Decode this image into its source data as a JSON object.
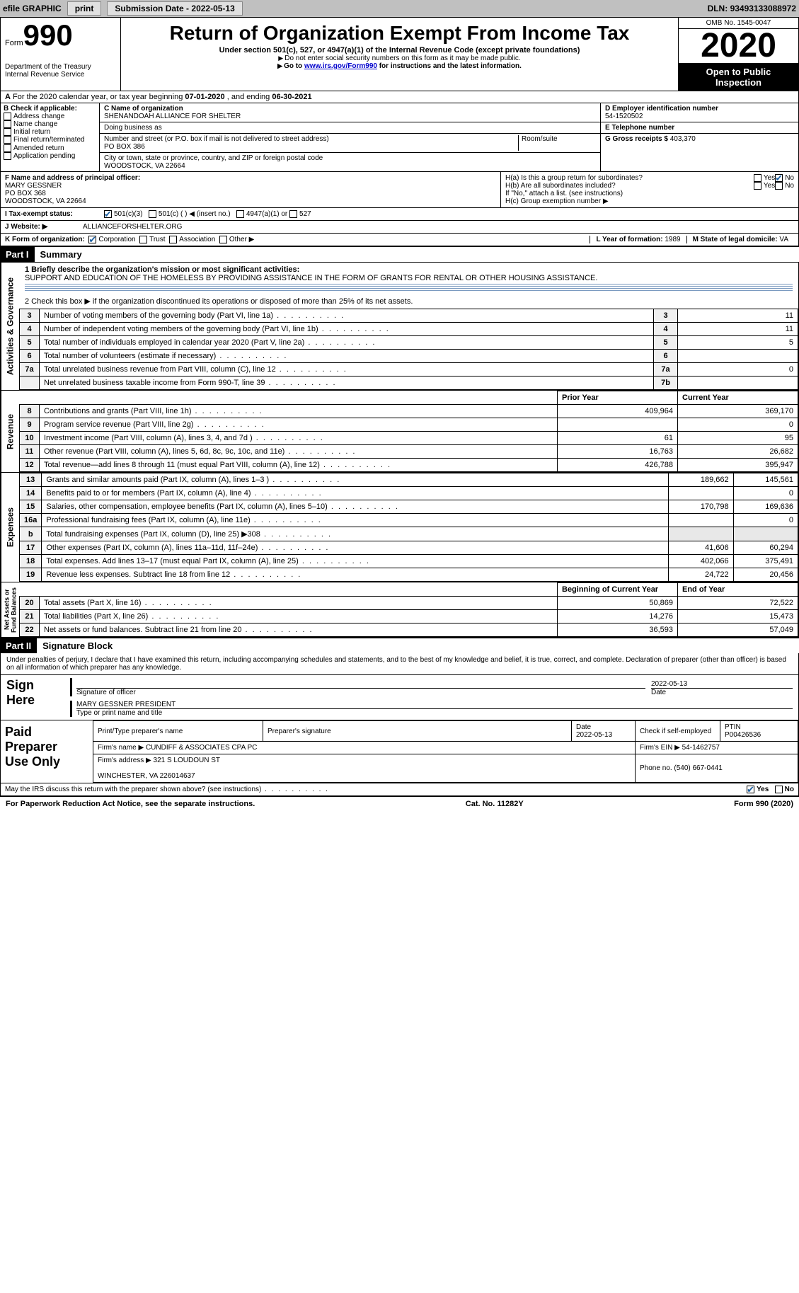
{
  "topbar": {
    "efile": "efile GRAPHIC",
    "print": "print",
    "submission_label": "Submission Date - ",
    "submission_date": "2022-05-13",
    "dln_label": "DLN: ",
    "dln": "93493133088972"
  },
  "header": {
    "form_word": "Form",
    "form_no": "990",
    "dept": "Department of the Treasury\nInternal Revenue Service",
    "title": "Return of Organization Exempt From Income Tax",
    "sub": "Under section 501(c), 527, or 4947(a)(1) of the Internal Revenue Code (except private foundations)",
    "note1": "Do not enter social security numbers on this form as it may be made public.",
    "note2_pre": "Go to ",
    "note2_link": "www.irs.gov/Form990",
    "note2_post": " for instructions and the latest information.",
    "omb": "OMB No. 1545-0047",
    "year": "2020",
    "open": "Open to Public\nInspection"
  },
  "section_a": {
    "text_pre": "For the 2020 calendar year, or tax year beginning ",
    "begin": "07-01-2020",
    "mid": " , and ending ",
    "end": "06-30-2021"
  },
  "col_b": {
    "label": "B Check if applicable:",
    "items": [
      "Address change",
      "Name change",
      "Initial return",
      "Final return/terminated",
      "Amended return",
      "Application pending"
    ]
  },
  "col_c": {
    "name_label": "C Name of organization",
    "name": "SHENANDOAH ALLIANCE FOR SHELTER",
    "dba_label": "Doing business as",
    "dba": "",
    "street_label": "Number and street (or P.O. box if mail is not delivered to street address)",
    "room_label": "Room/suite",
    "street": "PO BOX 386",
    "city_label": "City or town, state or province, country, and ZIP or foreign postal code",
    "city": "WOODSTOCK, VA  22664"
  },
  "col_d": {
    "d_label": "D Employer identification number",
    "ein": "54-1520502",
    "e_label": "E Telephone number",
    "phone": "",
    "g_label": "G Gross receipts $ ",
    "g_val": "403,370"
  },
  "row_f": {
    "f_label": "F Name and address of principal officer:",
    "f_name": "MARY GESSNER",
    "f_addr1": "PO BOX 368",
    "f_addr2": "WOODSTOCK, VA  22664",
    "ha": "H(a)  Is this a group return for subordinates?",
    "hb": "H(b)  Are all subordinates included?",
    "hb_note": "If \"No,\" attach a list. (see instructions)",
    "hc": "H(c)  Group exemption number ▶",
    "yes": "Yes",
    "no": "No"
  },
  "row_i": {
    "label": "I     Tax-exempt status:",
    "opts": [
      "501(c)(3)",
      "501(c) (  ) ◀ (insert no.)",
      "4947(a)(1) or",
      "527"
    ]
  },
  "row_j": {
    "label": "J     Website: ▶",
    "site": "ALLIANCEFORSHELTER.ORG"
  },
  "row_k": {
    "label": "K Form of organization:",
    "opts": [
      "Corporation",
      "Trust",
      "Association",
      "Other ▶"
    ],
    "l_label": "L Year of formation: ",
    "l_val": "1989",
    "m_label": "M State of legal domicile: ",
    "m_val": "VA"
  },
  "part1": {
    "part": "Part I",
    "title": "Summary",
    "q1_label": "1   Briefly describe the organization's mission or most significant activities:",
    "q1_text": "SUPPORT AND EDUCATION OF THE HOMELESS BY PROVIDING ASSISTANCE IN THE FORM OF GRANTS FOR RENTAL OR OTHER HOUSING ASSISTANCE.",
    "q2": "2   Check this box ▶        if the organization discontinued its operations or disposed of more than 25% of its net assets.",
    "lines_gov": [
      {
        "n": "3",
        "d": "Number of voting members of the governing body (Part VI, line 1a)",
        "box": "3",
        "v": "11"
      },
      {
        "n": "4",
        "d": "Number of independent voting members of the governing body (Part VI, line 1b)",
        "box": "4",
        "v": "11"
      },
      {
        "n": "5",
        "d": "Total number of individuals employed in calendar year 2020 (Part V, line 2a)",
        "box": "5",
        "v": "5"
      },
      {
        "n": "6",
        "d": "Total number of volunteers (estimate if necessary)",
        "box": "6",
        "v": ""
      },
      {
        "n": "7a",
        "d": "Total unrelated business revenue from Part VIII, column (C), line 12",
        "box": "7a",
        "v": "0"
      },
      {
        "n": "",
        "d": "Net unrelated business taxable income from Form 990-T, line 39",
        "box": "7b",
        "v": ""
      }
    ],
    "col_prior": "Prior Year",
    "col_curr": "Current Year",
    "rev_label": "Revenue",
    "rev": [
      {
        "n": "8",
        "d": "Contributions and grants (Part VIII, line 1h)",
        "p": "409,964",
        "c": "369,170"
      },
      {
        "n": "9",
        "d": "Program service revenue (Part VIII, line 2g)",
        "p": "",
        "c": "0"
      },
      {
        "n": "10",
        "d": "Investment income (Part VIII, column (A), lines 3, 4, and 7d )",
        "p": "61",
        "c": "95"
      },
      {
        "n": "11",
        "d": "Other revenue (Part VIII, column (A), lines 5, 6d, 8c, 9c, 10c, and 11e)",
        "p": "16,763",
        "c": "26,682"
      },
      {
        "n": "12",
        "d": "Total revenue—add lines 8 through 11 (must equal Part VIII, column (A), line 12)",
        "p": "426,788",
        "c": "395,947"
      }
    ],
    "exp_label": "Expenses",
    "exp": [
      {
        "n": "13",
        "d": "Grants and similar amounts paid (Part IX, column (A), lines 1–3 )",
        "p": "189,662",
        "c": "145,561"
      },
      {
        "n": "14",
        "d": "Benefits paid to or for members (Part IX, column (A), line 4)",
        "p": "",
        "c": "0"
      },
      {
        "n": "15",
        "d": "Salaries, other compensation, employee benefits (Part IX, column (A), lines 5–10)",
        "p": "170,798",
        "c": "169,636"
      },
      {
        "n": "16a",
        "d": "Professional fundraising fees (Part IX, column (A), line 11e)",
        "p": "",
        "c": "0"
      },
      {
        "n": "b",
        "d": "Total fundraising expenses (Part IX, column (D), line 25) ▶308",
        "p": "SHADE",
        "c": "SHADE"
      },
      {
        "n": "17",
        "d": "Other expenses (Part IX, column (A), lines 11a–11d, 11f–24e)",
        "p": "41,606",
        "c": "60,294"
      },
      {
        "n": "18",
        "d": "Total expenses. Add lines 13–17 (must equal Part IX, column (A), line 25)",
        "p": "402,066",
        "c": "375,491"
      },
      {
        "n": "19",
        "d": "Revenue less expenses. Subtract line 18 from line 12",
        "p": "24,722",
        "c": "20,456"
      }
    ],
    "net_label": "Net Assets or\nFund Balances",
    "net_head_p": "Beginning of Current Year",
    "net_head_c": "End of Year",
    "net": [
      {
        "n": "20",
        "d": "Total assets (Part X, line 16)",
        "p": "50,869",
        "c": "72,522"
      },
      {
        "n": "21",
        "d": "Total liabilities (Part X, line 26)",
        "p": "14,276",
        "c": "15,473"
      },
      {
        "n": "22",
        "d": "Net assets or fund balances. Subtract line 21 from line 20",
        "p": "36,593",
        "c": "57,049"
      }
    ]
  },
  "part2": {
    "part": "Part II",
    "title": "Signature Block",
    "decl": "Under penalties of perjury, I declare that I have examined this return, including accompanying schedules and statements, and to the best of my knowledge and belief, it is true, correct, and complete. Declaration of preparer (other than officer) is based on all information of which preparer has any knowledge.",
    "sign_here": "Sign Here",
    "sig_officer": "Signature of officer",
    "sig_date": "2022-05-13",
    "date_label": "Date",
    "officer_name": "MARY GESSNER  PRESIDENT",
    "type_label": "Type or print name and title",
    "paid_label": "Paid Preparer Use Only",
    "h_name": "Print/Type preparer's name",
    "h_sig": "Preparer's signature",
    "h_date": "Date",
    "h_date_v": "2022-05-13",
    "h_self": "Check        if self-employed",
    "h_ptin": "PTIN",
    "ptin": "P00426536",
    "firm_name_l": "Firm's name      ▶",
    "firm_name": "CUNDIFF & ASSOCIATES CPA PC",
    "firm_ein_l": "Firm's EIN ▶",
    "firm_ein": "54-1462757",
    "firm_addr_l": "Firm's address ▶",
    "firm_addr": "321 S LOUDOUN ST\n\nWINCHESTER, VA  226014637",
    "firm_phone_l": "Phone no. ",
    "firm_phone": "(540) 667-0441",
    "may": "May the IRS discuss this return with the preparer shown above? (see instructions)"
  },
  "footer": {
    "pra": "For Paperwork Reduction Act Notice, see the separate instructions.",
    "cat": "Cat. No. 11282Y",
    "form": "Form 990 (2020)"
  }
}
